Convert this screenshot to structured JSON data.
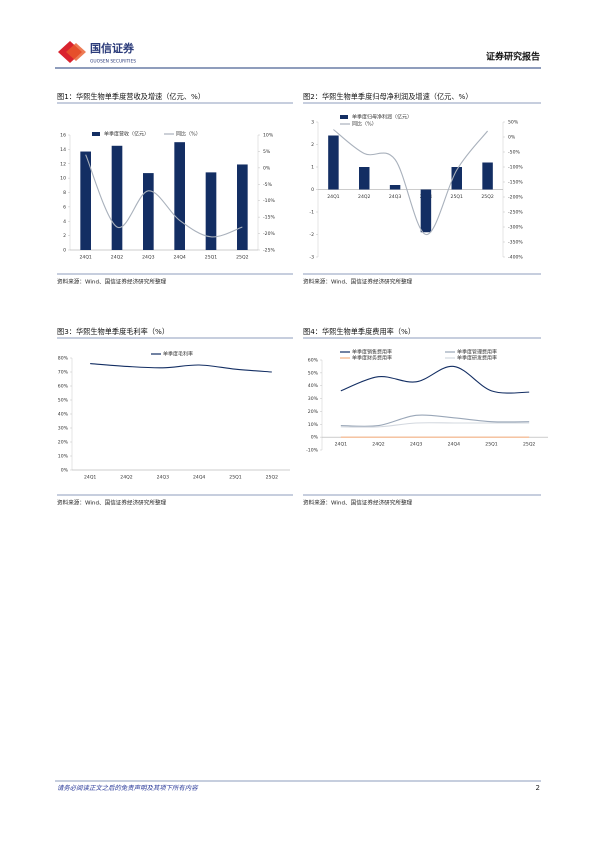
{
  "header": {
    "logo_cn": "国信证券",
    "logo_en": "GUOSEN SECURITIES",
    "title": "证券研究报告"
  },
  "chart_data": [
    {
      "type": "combo",
      "caption": "图1：华熙生物单季度营收及增速（亿元、%）",
      "source": "资料来源：Wind、国信证券经济研究所整理",
      "categories": [
        "24Q1",
        "24Q2",
        "24Q3",
        "24Q4",
        "25Q1",
        "25Q2"
      ],
      "series": [
        {
          "name": "单季度营收（亿元）",
          "kind": "bar",
          "color": "#132e63",
          "values": [
            13.7,
            14.5,
            10.7,
            15.0,
            10.8,
            11.9
          ]
        },
        {
          "name": "同比（%）",
          "kind": "line",
          "axis": "y2",
          "color": "#a9b1bc",
          "values": [
            4,
            -18,
            -7,
            -16,
            -21,
            -18
          ]
        }
      ],
      "ylim": [
        0,
        16
      ],
      "yticks": [
        0,
        2,
        4,
        6,
        8,
        10,
        12,
        14,
        16
      ],
      "y2lim": [
        -25,
        10
      ],
      "y2ticks": [
        {
          "value": -25,
          "label": "-25%"
        },
        {
          "value": -20,
          "label": "-20%"
        },
        {
          "value": -15,
          "label": "-15%"
        },
        {
          "value": -10,
          "label": "-10%"
        },
        {
          "value": -5,
          "label": "-5%"
        },
        {
          "value": 0,
          "label": "0%"
        },
        {
          "value": 5,
          "label": "5%"
        },
        {
          "value": 10,
          "label": "10%"
        }
      ],
      "legend": "top-left"
    },
    {
      "type": "combo",
      "caption": "图2：华熙生物单季度归母净利润及增速（亿元、%）",
      "source": "资料来源：Wind、国信证券经济研究所整理",
      "categories": [
        "24Q1",
        "24Q2",
        "24Q3",
        "24Q4",
        "25Q1",
        "25Q2"
      ],
      "series": [
        {
          "name": "单季度归母净利润（亿元）",
          "kind": "bar",
          "color": "#132e63",
          "values": [
            2.4,
            1.0,
            0.2,
            -1.9,
            1.0,
            1.2
          ]
        },
        {
          "name": "同比（%）",
          "kind": "line",
          "axis": "y2",
          "color": "#a9b1bc",
          "values": [
            25,
            -55,
            -75,
            -325,
            -110,
            20
          ]
        }
      ],
      "ylim": [
        -3,
        3
      ],
      "yticks": [
        -3,
        -2,
        -1,
        0,
        1,
        2,
        3
      ],
      "y2lim": [
        -400,
        50
      ],
      "y2ticks": [
        {
          "value": -400,
          "label": "-400%"
        },
        {
          "value": -350,
          "label": "-350%"
        },
        {
          "value": -300,
          "label": "-300%"
        },
        {
          "value": -250,
          "label": "-250%"
        },
        {
          "value": -200,
          "label": "-200%"
        },
        {
          "value": -150,
          "label": "-150%"
        },
        {
          "value": -100,
          "label": "-100%"
        },
        {
          "value": -50,
          "label": "-50%"
        },
        {
          "value": 0,
          "label": "0%"
        },
        {
          "value": 50,
          "label": "50%"
        }
      ],
      "legend": "top-left"
    },
    {
      "type": "line",
      "caption": "图3：华熙生物单季度毛利率（%）",
      "source": "资料来源：Wind、国信证券经济研究所整理",
      "categories": [
        "24Q1",
        "24Q2",
        "24Q3",
        "24Q4",
        "25Q1",
        "25Q2"
      ],
      "series": [
        {
          "name": "单季度毛利率",
          "color": "#132e63",
          "values": [
            76,
            74,
            73,
            75,
            72,
            70
          ]
        }
      ],
      "ylim": [
        0,
        80
      ],
      "yticks": [
        {
          "value": 0,
          "label": "0%"
        },
        {
          "value": 10,
          "label": "10%"
        },
        {
          "value": 20,
          "label": "20%"
        },
        {
          "value": 30,
          "label": "30%"
        },
        {
          "value": 40,
          "label": "40%"
        },
        {
          "value": 50,
          "label": "50%"
        },
        {
          "value": 60,
          "label": "60%"
        },
        {
          "value": 70,
          "label": "70%"
        },
        {
          "value": 80,
          "label": "80%"
        }
      ],
      "legend": "top"
    },
    {
      "type": "line",
      "caption": "图4：华熙生物单季度费用率（%）",
      "source": "资料来源：Wind、国信证券经济研究所整理",
      "categories": [
        "24Q1",
        "24Q2",
        "24Q3",
        "24Q4",
        "25Q1",
        "25Q2"
      ],
      "series": [
        {
          "name": "单季度销售费用率",
          "color": "#132e63",
          "values": [
            36,
            47,
            43,
            55,
            36,
            35
          ]
        },
        {
          "name": "单季度管理费用率",
          "color": "#9aa7b8",
          "values": [
            9,
            9,
            17,
            15,
            12,
            12
          ]
        },
        {
          "name": "单季度财务费用率",
          "color": "#f4b183",
          "values": [
            0,
            0,
            0,
            0,
            0,
            0
          ]
        },
        {
          "name": "单季度研发费用率",
          "color": "#d3d8df",
          "values": [
            8,
            8,
            11,
            11,
            11,
            11
          ]
        }
      ],
      "ylim": [
        -10,
        60
      ],
      "yticks": [
        {
          "value": -10,
          "label": "-10%"
        },
        {
          "value": 0,
          "label": "0%"
        },
        {
          "value": 10,
          "label": "10%"
        },
        {
          "value": 20,
          "label": "20%"
        },
        {
          "value": 30,
          "label": "30%"
        },
        {
          "value": 40,
          "label": "40%"
        },
        {
          "value": 50,
          "label": "50%"
        },
        {
          "value": 60,
          "label": "60%"
        }
      ],
      "legend": "top-left"
    }
  ],
  "footer": {
    "disclaimer": "请务必阅读正文之后的免责声明及其项下所有内容",
    "page": "2"
  }
}
